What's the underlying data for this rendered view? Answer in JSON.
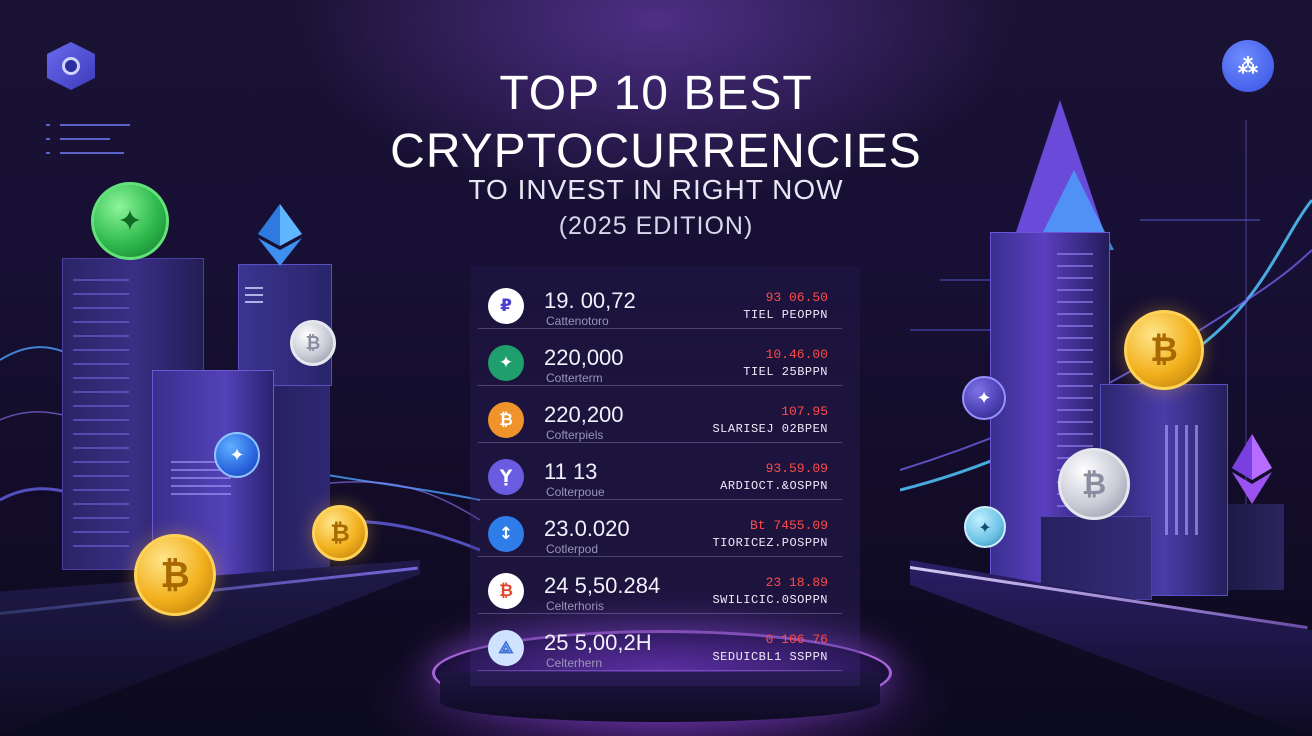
{
  "title": {
    "line1": "TOP 10 BEST",
    "line2": "CRYPTOCURRENCIES",
    "line3": "TO INVEST IN RIGHT NOW",
    "line4": "(2025 EDITION)"
  },
  "icons": {
    "left_logo": "hexagon-logo-icon",
    "right_logo": "app-logo-icon",
    "right_logo_glyph": "⁂"
  },
  "colors": {
    "background": "#171034",
    "accent_purple": "#8a4dff",
    "accent_blue": "#3aa8ff",
    "negative_change": "#ff4a4a",
    "gold_coin": "#f2b01d"
  },
  "coins": {
    "bitcoin_symbol": "₿",
    "generic_symbol": "✦"
  },
  "rows": [
    {
      "icon": "p-coin-icon",
      "glyph": "₽",
      "bg": "#ffffff",
      "fg": "#4a3fd0",
      "price": "19. 00,72",
      "name": "Cattenotoro",
      "change": "93 06.50",
      "tag": "TIEL PEOPPN"
    },
    {
      "icon": "diamond-coin-icon",
      "glyph": "✦",
      "bg": "#1f9e6e",
      "fg": "#ffffff",
      "price": "220,000",
      "name": "Cotterterm",
      "change": "10.46.00",
      "tag": "TIEL 25BPPN"
    },
    {
      "icon": "bitcoin-orange-coin-icon",
      "glyph": "₿",
      "bg": "#f0932a",
      "fg": "#ffffff",
      "price": "220,200",
      "name": "Cofterpiels",
      "change": "107.95",
      "tag": "SLARISEJ 02BPEN"
    },
    {
      "icon": "purple-coin-icon",
      "glyph": "Ỵ",
      "bg": "#6a5ce0",
      "fg": "#ffffff",
      "price": "11 13",
      "name": "Colterpoue",
      "change": "93.59.09",
      "tag": "ARDIOCT.&OSPPN"
    },
    {
      "icon": "arrows-coin-icon",
      "glyph": "↕",
      "bg": "#2f7de8",
      "fg": "#ffffff",
      "price": "23.0.020",
      "name": "Cotlerpod",
      "change": "Bt 7455.09",
      "tag": "TIORICEZ.POSPPN"
    },
    {
      "icon": "bitcoin-red-coin-icon",
      "glyph": "₿",
      "bg": "#ffffff",
      "fg": "#e0462a",
      "price": "24 5,50.284",
      "name": "Celterhoris",
      "change": "23 18.89",
      "tag": "SWILICIC.0SOPPN"
    },
    {
      "icon": "triangle-coin-icon",
      "glyph": "⟁",
      "bg": "#cfe3ff",
      "fg": "#3a6ad8",
      "price": "25 5,00,2H",
      "name": "Celterhern",
      "change": "0 106 76",
      "tag": "SEDUICBL1 SSPPN"
    }
  ]
}
